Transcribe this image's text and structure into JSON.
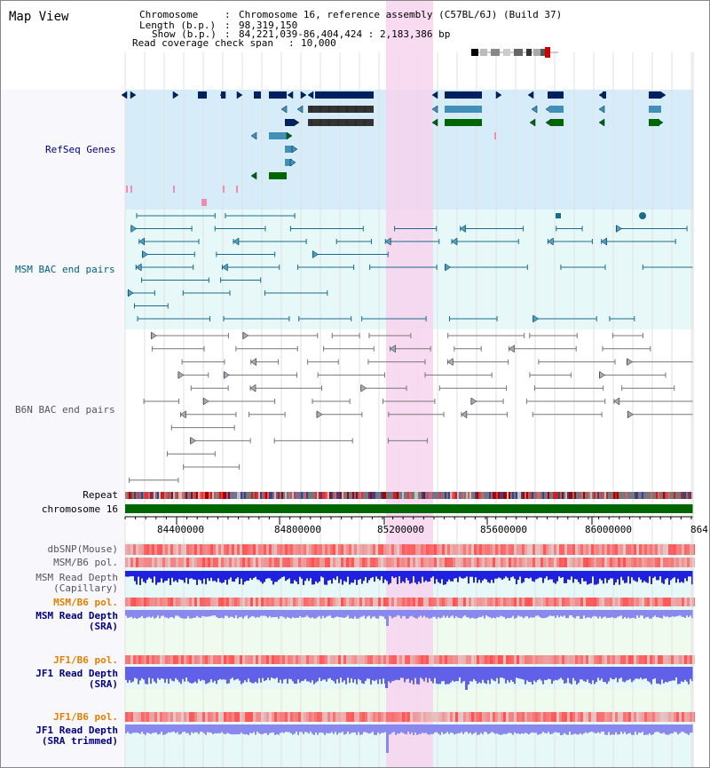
{
  "window": {
    "title": "Map View"
  },
  "info": {
    "chromosome_label": "Chromosome",
    "chromosome_value": "Chromosome 16, reference assembly (C57BL/6J) (Build 37)",
    "length_label": "Length (b.p.)",
    "length_value": "98,319,150",
    "show_label": "Show (b.p.)",
    "show_value": "84,221,039-86,404,424 : 2,183,386 bp",
    "coverage_label": "Read coverage check span",
    "coverage_value": "10,000"
  },
  "tracks": {
    "refseq": "RefSeq Genes",
    "msm_bac": "MSM BAC end pairs",
    "b6n_bac": "B6N BAC end pairs",
    "repeat": "Repeat",
    "chromosome": "chromosome 16",
    "dbsnp": "dbSNP(Mouse)",
    "msm_b6_pol": "MSM/B6 pol.",
    "msm_read_depth_cap_1": "MSM Read Depth",
    "msm_read_depth_cap_2": "(Capillary)",
    "msm_b6_pol_2": "MSM/B6 pol.",
    "msm_read_depth_sra_1": "MSM Read Depth",
    "msm_read_depth_sra_2": "(SRA)",
    "jf1_b6_pol": "JF1/B6 pol.",
    "jf1_read_depth_sra_1": "JF1 Read Depth",
    "jf1_read_depth_sra_2": "(SRA)",
    "jf1_b6_pol_2": "JF1/B6 pol.",
    "jf1_read_depth_trim_1": "JF1 Read Depth",
    "jf1_read_depth_trim_2": "(SRA trimmed)"
  },
  "ruler": {
    "ticks": [
      "84400000",
      "84800000",
      "85200000",
      "85600000",
      "86000000",
      "864"
    ]
  },
  "colors": {
    "refseq_bg": "#d6ecf8",
    "msm_bg": "#e6f8f8",
    "highlight": "#f7d3ee",
    "chrom_bar": "#006600",
    "label_navy": "#000080",
    "label_teal": "#006080",
    "label_gray": "#555555",
    "label_orange": "#e08000",
    "depth_blue": "#2020e0",
    "depth_light": "#8888ee"
  }
}
